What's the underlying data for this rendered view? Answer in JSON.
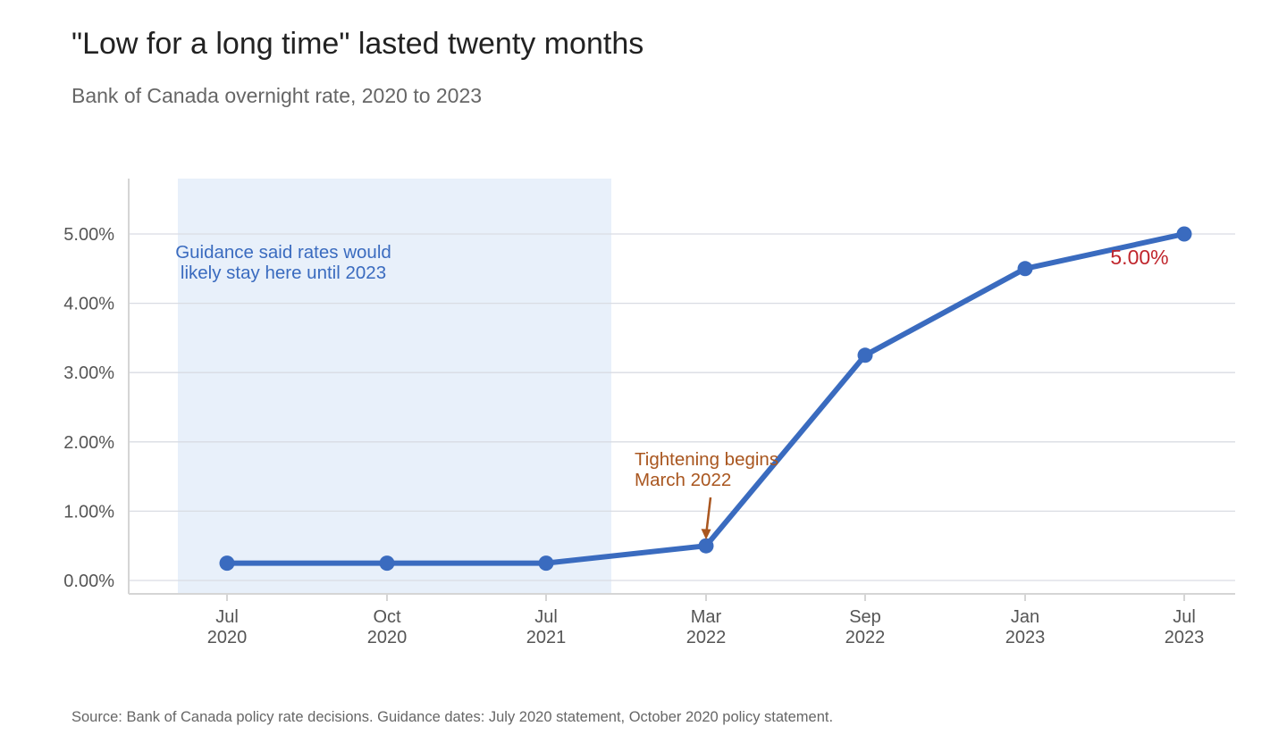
{
  "title": "\"Low for a long time\" lasted twenty months",
  "subtitle": "Bank of Canada overnight rate, 2020 to 2023",
  "source": "Source: Bank of Canada policy rate decisions. Guidance dates: July 2020 statement, October 2020 policy statement.",
  "colors": {
    "line": "#3a6bbf",
    "shade": "#e8f0fa",
    "guidance_text": "#3a6bbf",
    "tightening": "#a9561f",
    "end_label": "#c0262d",
    "grid": "#d9dce3",
    "axis": "#d5d5d5"
  },
  "chart_data": {
    "type": "line",
    "categories": [
      "Jul 2020",
      "Oct 2020",
      "Jul 2021",
      "Mar 2022",
      "Sep 2022",
      "Jan 2023",
      "Jul 2023"
    ],
    "x_labels": [
      [
        "Jul",
        "2020"
      ],
      [
        "Oct",
        "2020"
      ],
      [
        "Jul",
        "2021"
      ],
      [
        "Mar",
        "2022"
      ],
      [
        "Sep",
        "2022"
      ],
      [
        "Jan",
        "2023"
      ],
      [
        "Jul",
        "2023"
      ]
    ],
    "series": [
      {
        "values": [
          0.25,
          0.25,
          0.25,
          0.5,
          3.25,
          4.5,
          5.0
        ]
      }
    ],
    "ylim": [
      -0.2,
      5.8
    ],
    "yticks": [
      0,
      1,
      2,
      3,
      4,
      5
    ],
    "ytick_labels": [
      "0.00%",
      "1.00%",
      "2.00%",
      "3.00%",
      "4.00%",
      "5.00%"
    ],
    "grid": true,
    "shaded_region": {
      "from_category": "Jul 2020",
      "to_category": "Jul 2021",
      "label_lines": [
        "Guidance said rates would",
        "likely stay here until 2023"
      ]
    },
    "annotations": [
      {
        "category": "Mar 2022",
        "lines": [
          "Tightening begins",
          "March 2022"
        ]
      }
    ],
    "end_label": "5.00%"
  }
}
